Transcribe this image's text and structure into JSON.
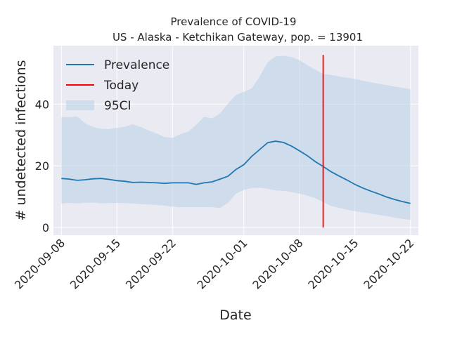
{
  "chart_data": {
    "type": "line",
    "title": "Prevalence of COVID-19",
    "subtitle": "US - Alaska - Ketchikan Gateway, pop. = 13901",
    "xlabel": "Date",
    "ylabel": "# undetected infections",
    "x_ticks": [
      "2020-09-08",
      "2020-09-15",
      "2020-09-22",
      "2020-10-01",
      "2020-10-08",
      "2020-10-15",
      "2020-10-22"
    ],
    "y_ticks": [
      0,
      20,
      40
    ],
    "xlim": [
      "2020-09-07",
      "2020-10-23"
    ],
    "ylim": [
      -2.5,
      59
    ],
    "grid": true,
    "legend_position": "top-left",
    "colors": {
      "prevalence": "#1f77b4",
      "today": "#ff0000",
      "ci": "#b8cfe6",
      "plot_background": "#eaeaf2",
      "grid": "#ffffff"
    },
    "today": "2020-10-11",
    "series": [
      {
        "name": "Prevalence",
        "x": [
          "2020-09-08",
          "2020-09-09",
          "2020-09-10",
          "2020-09-11",
          "2020-09-12",
          "2020-09-13",
          "2020-09-14",
          "2020-09-15",
          "2020-09-16",
          "2020-09-17",
          "2020-09-18",
          "2020-09-19",
          "2020-09-20",
          "2020-09-21",
          "2020-09-22",
          "2020-09-23",
          "2020-09-24",
          "2020-09-25",
          "2020-09-26",
          "2020-09-27",
          "2020-09-28",
          "2020-09-29",
          "2020-09-30",
          "2020-10-01",
          "2020-10-02",
          "2020-10-03",
          "2020-10-04",
          "2020-10-05",
          "2020-10-06",
          "2020-10-07",
          "2020-10-08",
          "2020-10-09",
          "2020-10-10",
          "2020-10-11",
          "2020-10-12",
          "2020-10-13",
          "2020-10-14",
          "2020-10-15",
          "2020-10-16",
          "2020-10-17",
          "2020-10-18",
          "2020-10-19",
          "2020-10-20",
          "2020-10-21",
          "2020-10-22"
        ],
        "values": [
          15.9,
          15.7,
          15.3,
          15.5,
          15.8,
          15.9,
          15.6,
          15.2,
          15.0,
          14.6,
          14.7,
          14.6,
          14.5,
          14.3,
          14.5,
          14.5,
          14.5,
          14.0,
          14.5,
          14.8,
          15.7,
          16.6,
          18.8,
          20.4,
          23.1,
          25.3,
          27.5,
          28.0,
          27.6,
          26.4,
          24.9,
          23.3,
          21.4,
          19.8,
          18.1,
          16.7,
          15.4,
          14.0,
          12.8,
          11.8,
          10.9,
          9.9,
          9.1,
          8.4,
          7.8
        ]
      }
    ],
    "ci_band": {
      "name": "95CI",
      "lower": [
        7.8,
        8.0,
        7.8,
        8.0,
        8.1,
        7.8,
        7.9,
        8.0,
        7.9,
        7.8,
        7.6,
        7.5,
        7.3,
        7.1,
        6.8,
        6.6,
        6.6,
        6.6,
        6.6,
        6.6,
        6.3,
        8.0,
        11.0,
        12.2,
        12.8,
        12.9,
        12.6,
        12.0,
        11.9,
        11.5,
        11.0,
        10.4,
        9.5,
        8.3,
        7.0,
        6.4,
        5.8,
        5.3,
        4.9,
        4.5,
        4.1,
        3.7,
        3.2,
        2.8,
        2.5
      ],
      "upper": [
        35.8,
        35.8,
        36.0,
        33.8,
        32.6,
        32.0,
        31.9,
        32.3,
        32.7,
        33.5,
        32.6,
        31.5,
        30.5,
        29.3,
        29.1,
        30.3,
        31.1,
        33.3,
        35.9,
        35.4,
        37.0,
        40.2,
        43.0,
        44.0,
        45.1,
        49.0,
        53.5,
        55.5,
        55.7,
        55.3,
        54.3,
        52.7,
        51.2,
        49.8,
        49.5,
        49.0,
        48.6,
        48.2,
        47.6,
        47.1,
        46.6,
        46.2,
        45.7,
        45.3,
        44.9
      ]
    }
  }
}
